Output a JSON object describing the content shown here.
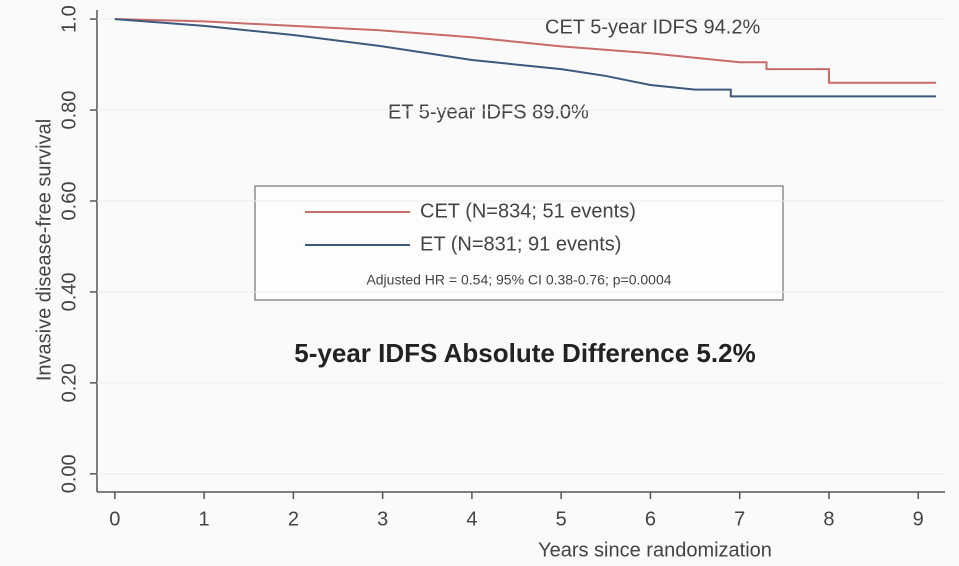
{
  "chart_data": {
    "type": "line",
    "x_label": "Years since randomization",
    "y_label": "Invasive disease-free survival",
    "xlim": [
      -0.2,
      9.3
    ],
    "ylim": [
      -0.04,
      1.02
    ],
    "xticks": [
      0,
      1,
      2,
      3,
      4,
      5,
      6,
      7,
      8,
      9
    ],
    "yticks": [
      {
        "value": 0,
        "label": "0.00"
      },
      {
        "value": 0.2,
        "label": "0.20"
      },
      {
        "value": 0.4,
        "label": "0.40"
      },
      {
        "value": 0.6,
        "label": "0.60"
      },
      {
        "value": 0.8,
        "label": "0.80"
      },
      {
        "value": 1,
        "label": "1.0"
      }
    ],
    "grid": true,
    "series": [
      {
        "name": "CET (N=834; 51 events)",
        "color": "#c86c68",
        "x": [
          0,
          1,
          2,
          3,
          4,
          5,
          6,
          6.5,
          7,
          7.3,
          7.3,
          8,
          8,
          9.2
        ],
        "values": [
          1.0,
          0.995,
          0.985,
          0.975,
          0.96,
          0.94,
          0.925,
          0.915,
          0.905,
          0.905,
          0.89,
          0.89,
          0.86,
          0.86
        ]
      },
      {
        "name": "ET (N=831; 91 events)",
        "color": "#3d5a7e",
        "x": [
          0,
          1,
          2,
          3,
          4,
          5,
          5.5,
          6,
          6.5,
          6.9,
          6.9,
          9.2
        ],
        "values": [
          1.0,
          0.985,
          0.965,
          0.94,
          0.91,
          0.89,
          0.875,
          0.855,
          0.845,
          0.845,
          0.83,
          0.83
        ]
      }
    ],
    "annotations": [
      "CET 5-year IDFS 94.2%",
      "ET 5-year IDFS 89.0%",
      "Adjusted HR = 0.54; 95% CI 0.38-0.76; p=0.0004",
      "5-year IDFS Absolute Difference 5.2%"
    ]
  }
}
